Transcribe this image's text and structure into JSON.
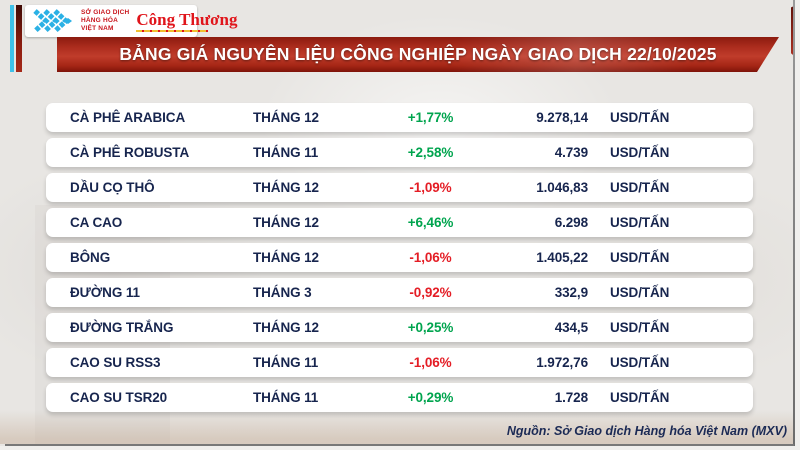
{
  "header": {
    "logo": {
      "mxv_lines": [
        "SỞ GIAO DỊCH",
        "HÀNG HÓA",
        "VIỆT NAM"
      ],
      "brand": "Công Thương"
    },
    "title": "BẢNG GIÁ NGUYÊN LIỆU CÔNG NGHIỆP NGÀY GIAO DỊCH 22/10/2025"
  },
  "chart_data": {
    "type": "table",
    "title": "BẢNG GIÁ NGUYÊN LIỆU CÔNG NGHIỆP NGÀY GIAO DỊCH 22/10/2025",
    "rows": [
      {
        "commodity": "CÀ PHÊ ARABICA",
        "month": "THÁNG 12",
        "change": "+1,77%",
        "direction": "up",
        "price": "9.278,14",
        "unit": "USD/TẤN"
      },
      {
        "commodity": "CÀ PHÊ ROBUSTA",
        "month": "THÁNG 11",
        "change": "+2,58%",
        "direction": "up",
        "price": "4.739",
        "unit": "USD/TẤN"
      },
      {
        "commodity": "DẦU CỌ THÔ",
        "month": "THÁNG 12",
        "change": "-1,09%",
        "direction": "down",
        "price": "1.046,83",
        "unit": "USD/TẤN"
      },
      {
        "commodity": "CA CAO",
        "month": "THÁNG 12",
        "change": "+6,46%",
        "direction": "up",
        "price": "6.298",
        "unit": "USD/TẤN"
      },
      {
        "commodity": "BÔNG",
        "month": "THÁNG 12",
        "change": "-1,06%",
        "direction": "down",
        "price": "1.405,22",
        "unit": "USD/TẤN"
      },
      {
        "commodity": "ĐƯỜNG 11",
        "month": "THÁNG 3",
        "change": "-0,92%",
        "direction": "down",
        "price": "332,9",
        "unit": "USD/TẤN"
      },
      {
        "commodity": "ĐƯỜNG TRẮNG",
        "month": "THÁNG 12",
        "change": "+0,25%",
        "direction": "up",
        "price": "434,5",
        "unit": "USD/TẤN"
      },
      {
        "commodity": "CAO SU RSS3",
        "month": "THÁNG 11",
        "change": "-1,06%",
        "direction": "down",
        "price": "1.972,76",
        "unit": "USD/TẤN"
      },
      {
        "commodity": "CAO SU TSR20",
        "month": "THÁNG 11",
        "change": "+0,29%",
        "direction": "up",
        "price": "1.728",
        "unit": "USD/TẤN"
      }
    ]
  },
  "footer": {
    "source": "Nguồn: Sở Giao dịch Hàng hóa Việt Nam (MXV)"
  },
  "colors": {
    "banner_red": "#b23325",
    "positive_green": "#00a44e",
    "negative_red": "#e41d25",
    "text_navy": "#17254e",
    "logo_blue": "#2bb1e5",
    "logo_red": "#d8161c",
    "stripe_cyan": "#3ec1ea"
  }
}
